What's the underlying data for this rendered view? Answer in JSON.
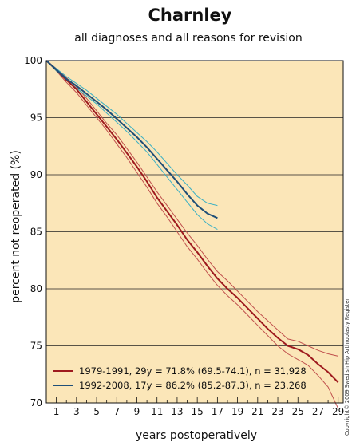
{
  "chart_data": {
    "type": "line",
    "title": "Charnley",
    "subtitle": "all diagnoses and all reasons for revision",
    "xlabel": "years postoperatively",
    "ylabel": "percent not reoperated (%)",
    "xlim": [
      0,
      29.5
    ],
    "ylim": [
      70,
      100
    ],
    "x_ticks": [
      1,
      3,
      5,
      7,
      9,
      11,
      13,
      15,
      17,
      19,
      21,
      23,
      25,
      27,
      29
    ],
    "y_ticks": [
      70,
      75,
      80,
      85,
      90,
      95,
      100
    ],
    "grid": "horizontal",
    "legend_position": "bottom-left",
    "copyright": "Copyright© 2009 Swedish Hip Arthroplasty Register",
    "colors": {
      "background": "#fbe6b8",
      "grid": "#222222",
      "series_1979": "#9e1a1e",
      "series_1979_ci": "#c0504d",
      "series_1992": "#1f4f78",
      "series_1992_ci": "#3bb0c4"
    },
    "series": [
      {
        "name": "1979-1991, 29y = 71.8% (69.5-74.1), n = 31,928",
        "color": "#9e1a1e",
        "x": [
          0,
          1,
          2,
          3,
          4,
          5,
          6,
          7,
          8,
          9,
          10,
          11,
          12,
          13,
          14,
          15,
          16,
          17,
          18,
          19,
          20,
          21,
          22,
          23,
          24,
          25,
          26,
          27,
          28,
          29
        ],
        "values": [
          100,
          99.2,
          98.3,
          97.5,
          96.4,
          95.3,
          94.2,
          93.1,
          91.9,
          90.7,
          89.4,
          88.0,
          86.8,
          85.6,
          84.3,
          83.2,
          82.0,
          80.9,
          80.0,
          79.2,
          78.3,
          77.4,
          76.5,
          75.7,
          75.0,
          74.7,
          74.2,
          73.4,
          72.7,
          71.8
        ],
        "lower": [
          100,
          99.1,
          98.1,
          97.2,
          96.1,
          95.0,
          93.9,
          92.7,
          91.5,
          90.2,
          88.9,
          87.5,
          86.3,
          85.0,
          83.7,
          82.6,
          81.4,
          80.3,
          79.4,
          78.6,
          77.7,
          76.8,
          75.9,
          75.0,
          74.3,
          73.8,
          73.3,
          72.4,
          71.4,
          69.5
        ],
        "upper": [
          100,
          99.3,
          98.5,
          97.7,
          96.7,
          95.6,
          94.5,
          93.5,
          92.3,
          91.1,
          89.8,
          88.5,
          87.3,
          86.1,
          84.9,
          83.8,
          82.6,
          81.5,
          80.7,
          79.8,
          78.9,
          78.0,
          77.2,
          76.4,
          75.6,
          75.4,
          75.0,
          74.6,
          74.3,
          74.1
        ]
      },
      {
        "name": "1992-2008, 17y = 86.2% (85.2-87.3), n = 23,268",
        "color": "#1f4f78",
        "x": [
          0,
          1,
          2,
          3,
          4,
          5,
          6,
          7,
          8,
          9,
          10,
          11,
          12,
          13,
          14,
          15,
          16,
          17
        ],
        "values": [
          100,
          99.2,
          98.4,
          97.8,
          97.1,
          96.4,
          95.7,
          94.9,
          94.1,
          93.3,
          92.4,
          91.4,
          90.4,
          89.4,
          88.3,
          87.3,
          86.6,
          86.2
        ],
        "lower": [
          100,
          99.1,
          98.3,
          97.6,
          96.9,
          96.2,
          95.4,
          94.6,
          93.8,
          92.9,
          92.0,
          90.9,
          89.8,
          88.7,
          87.6,
          86.5,
          85.7,
          85.2
        ],
        "upper": [
          100,
          99.3,
          98.6,
          98.0,
          97.4,
          96.7,
          96.0,
          95.3,
          94.5,
          93.7,
          92.9,
          92.0,
          91.0,
          90.0,
          89.1,
          88.1,
          87.5,
          87.3
        ]
      }
    ]
  }
}
